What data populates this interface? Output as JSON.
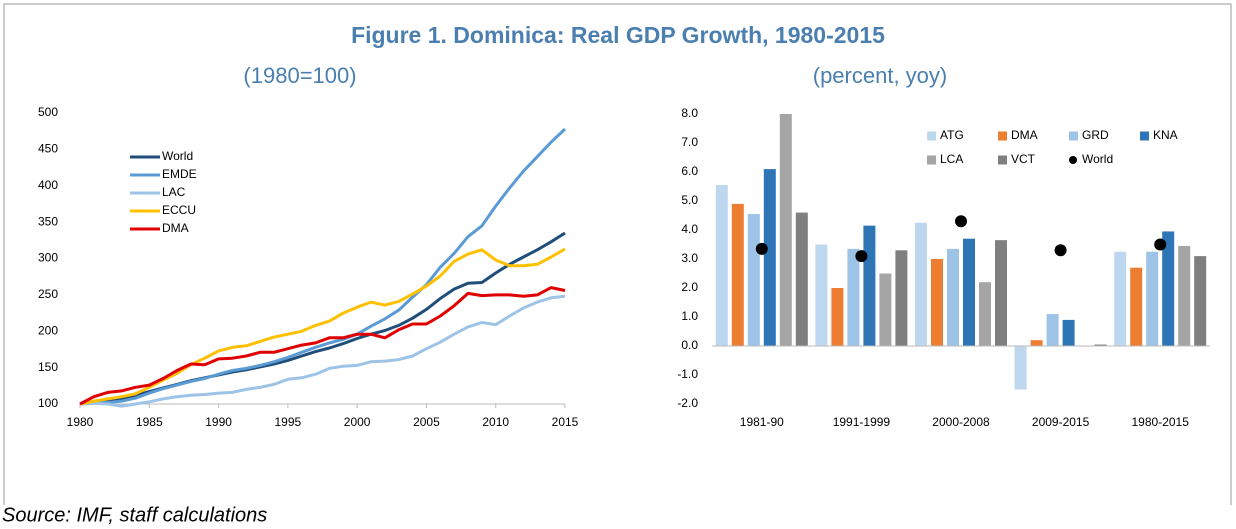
{
  "figure_title": "Figure 1. Dominica: Real GDP Growth, 1980-2015",
  "source": "Source: IMF, staff calculations",
  "chart_data": [
    {
      "type": "line",
      "subtitle": "(1980=100)",
      "x": [
        1980,
        1981,
        1982,
        1983,
        1984,
        1985,
        1986,
        1987,
        1988,
        1989,
        1990,
        1991,
        1992,
        1993,
        1994,
        1995,
        1996,
        1997,
        1998,
        1999,
        2000,
        2001,
        2002,
        2003,
        2004,
        2005,
        2006,
        2007,
        2008,
        2009,
        2010,
        2011,
        2012,
        2013,
        2014,
        2015
      ],
      "xlim": [
        1980,
        2015
      ],
      "xticks": [
        1980,
        1985,
        1990,
        1995,
        2000,
        2005,
        2010,
        2015
      ],
      "ylim": [
        100,
        500
      ],
      "yticks": [
        100,
        150,
        200,
        250,
        300,
        350,
        400,
        450,
        500
      ],
      "grid": false,
      "legend": "upper left",
      "series": [
        {
          "name": "World",
          "color": "#1f4e79",
          "values": [
            100,
            102,
            104,
            107,
            112,
            117,
            122,
            127,
            132,
            136,
            140,
            144,
            147,
            151,
            155,
            160,
            166,
            172,
            177,
            183,
            190,
            196,
            201,
            208,
            218,
            230,
            245,
            258,
            266,
            267,
            280,
            292,
            302,
            312,
            323,
            335
          ]
        },
        {
          "name": "EMDE",
          "color": "#5b9bd5",
          "values": [
            100,
            101,
            102,
            104,
            108,
            115,
            121,
            126,
            131,
            135,
            141,
            146,
            149,
            153,
            158,
            164,
            171,
            178,
            184,
            189,
            196,
            207,
            217,
            229,
            247,
            264,
            288,
            307,
            330,
            345,
            372,
            397,
            420,
            440,
            460,
            478
          ]
        },
        {
          "name": "LAC",
          "color": "#9dc3e6",
          "values": [
            100,
            101,
            100,
            97,
            100,
            103,
            107,
            110,
            112,
            113,
            115,
            116,
            120,
            123,
            127,
            134,
            136,
            141,
            149,
            152,
            153,
            158,
            159,
            161,
            166,
            176,
            185,
            196,
            206,
            212,
            209,
            221,
            232,
            240,
            246,
            248
          ]
        },
        {
          "name": "ECCU",
          "color": "#ffc000",
          "values": [
            100,
            104,
            107,
            110,
            114,
            123,
            133,
            142,
            154,
            163,
            173,
            178,
            180,
            186,
            192,
            196,
            200,
            208,
            214,
            225,
            233,
            240,
            236,
            241,
            251,
            262,
            276,
            296,
            306,
            312,
            298,
            290,
            290,
            292,
            302,
            313
          ]
        },
        {
          "name": "DMA",
          "color": "#e00000",
          "values": [
            100,
            110,
            116,
            118,
            123,
            126,
            135,
            146,
            155,
            154,
            162,
            163,
            166,
            171,
            171,
            176,
            181,
            184,
            191,
            191,
            196,
            196,
            191,
            202,
            210,
            210,
            221,
            235,
            252,
            249,
            250,
            250,
            248,
            250,
            260,
            256
          ]
        }
      ]
    },
    {
      "type": "bar",
      "subtitle": "(percent, yoy)",
      "categories": [
        "1981-90",
        "1991-1999",
        "2000-2008",
        "2009-2015",
        "1980-2015"
      ],
      "ylim": [
        -2,
        8
      ],
      "yticks": [
        {
          "value": -2,
          "label": "-2.0"
        },
        {
          "value": -1,
          "label": "-1.0"
        },
        {
          "value": 0,
          "label": "0.0"
        },
        {
          "value": 1,
          "label": "1.0"
        },
        {
          "value": 2,
          "label": "2.0"
        },
        {
          "value": 3,
          "label": "3.0"
        },
        {
          "value": 4,
          "label": "4.0"
        },
        {
          "value": 5,
          "label": "5.0"
        },
        {
          "value": 6,
          "label": "6.0"
        },
        {
          "value": 7,
          "label": "7.0"
        },
        {
          "value": 8,
          "label": "8.0"
        }
      ],
      "grid": false,
      "legend": "upper right",
      "series": [
        {
          "name": "ATG",
          "color": "#bdd7ee",
          "values": [
            5.55,
            3.5,
            4.25,
            -1.5,
            3.25
          ]
        },
        {
          "name": "DMA",
          "color": "#ed7d31",
          "values": [
            4.9,
            2.0,
            3.0,
            0.2,
            2.7
          ]
        },
        {
          "name": "GRD",
          "color": "#9dc3e6",
          "values": [
            4.55,
            3.35,
            3.35,
            1.1,
            3.25
          ]
        },
        {
          "name": "KNA",
          "color": "#2e75b6",
          "values": [
            6.1,
            4.15,
            3.7,
            0.9,
            3.95
          ]
        },
        {
          "name": "LCA",
          "color": "#a5a5a5",
          "values": [
            8.0,
            2.5,
            2.2,
            -0.02,
            3.45
          ]
        },
        {
          "name": "VCT",
          "color": "#7f7f7f",
          "values": [
            4.6,
            3.3,
            3.65,
            0.05,
            3.1
          ]
        },
        {
          "name": "World",
          "type": "scatter",
          "color": "#000000",
          "values": [
            3.35,
            3.1,
            4.3,
            3.3,
            3.5
          ]
        }
      ]
    }
  ]
}
